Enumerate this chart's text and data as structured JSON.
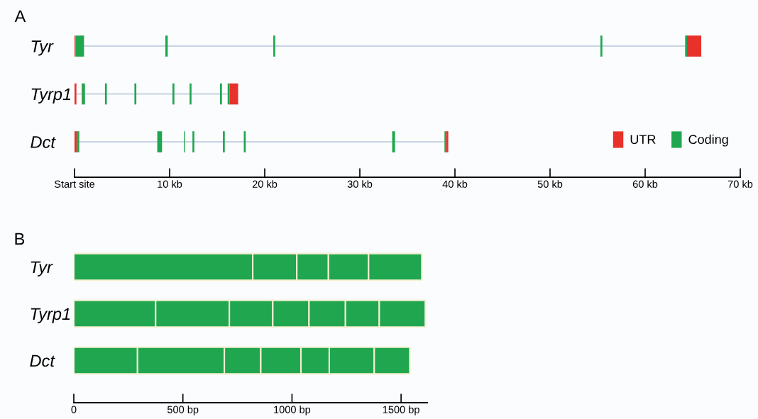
{
  "chart_data": [
    {
      "type": "bar",
      "title": "A",
      "orientation": "horizontal",
      "categories": [
        "Tyr",
        "Tyrp1",
        "Dct"
      ],
      "xlim": [
        0,
        70
      ],
      "xticks": [
        {
          "value": 0,
          "label": "Start site"
        },
        {
          "value": 10,
          "label": "10 kb"
        },
        {
          "value": 20,
          "label": "20 kb"
        },
        {
          "value": 30,
          "label": "30 kb"
        },
        {
          "value": 40,
          "label": "40 kb"
        },
        {
          "value": 50,
          "label": "50 kb"
        },
        {
          "value": 60,
          "label": "60 kb"
        },
        {
          "value": 70,
          "label": "70 kb"
        }
      ],
      "legend": "bottom right",
      "grid": false,
      "series": [
        {
          "color": "#c6d3e3",
          "base": [
            1.0,
            0.2,
            0.5
          ],
          "values": [
            63.2,
            15.9,
            38.4
          ]
        },
        {
          "name": "UTR",
          "color": "#e8312a",
          "base": [
            0,
            0,
            0
          ],
          "values": [
            0.1,
            0.2,
            0.25
          ]
        },
        {
          "color": "#e8312a",
          "base": [
            64.4,
            0.75,
            39.05
          ],
          "values": [
            1.5,
            0.05,
            0.25
          ]
        },
        {
          "color": "#e8312a",
          "base": [
            null,
            16.3,
            null
          ],
          "values": [
            null,
            0.9,
            null
          ]
        },
        {
          "name": "Coding",
          "color": "#1fa64f",
          "base": [
            0.1,
            0.8,
            0.25
          ],
          "values": [
            0.9,
            0.3,
            0.25
          ]
        },
        {
          "color": "#1fa64f",
          "base": [
            9.55,
            3.2,
            8.7
          ],
          "values": [
            0.25,
            0.2,
            0.5
          ]
        },
        {
          "color": "#1fa64f",
          "base": [
            20.9,
            6.3,
            11.5
          ],
          "values": [
            0.2,
            0.2,
            0.1
          ]
        },
        {
          "color": "#1fa64f",
          "base": [
            55.3,
            10.3,
            12.4
          ],
          "values": [
            0.2,
            0.2,
            0.2
          ]
        },
        {
          "color": "#1fa64f",
          "base": [
            64.2,
            12.1,
            15.6
          ],
          "values": [
            0.2,
            0.2,
            0.2
          ]
        },
        {
          "color": "#1fa64f",
          "base": [
            null,
            15.3,
            17.8
          ],
          "values": [
            null,
            0.2,
            0.2
          ]
        },
        {
          "color": "#1fa64f",
          "base": [
            null,
            16.1,
            33.4
          ],
          "values": [
            null,
            0.2,
            0.3
          ]
        },
        {
          "color": "#1fa64f",
          "base": [
            null,
            null,
            38.9
          ],
          "values": [
            null,
            null,
            0.15
          ]
        }
      ]
    },
    {
      "type": "bar",
      "title": "B",
      "orientation": "horizontal",
      "stacked": true,
      "categories": [
        "Tyr",
        "Tyrp1",
        "Dct"
      ],
      "xlim": [
        0,
        1620
      ],
      "xticks": [
        0,
        {
          "value": 500,
          "label": "500 bp"
        },
        {
          "value": 1000,
          "label": "1000 bp"
        },
        {
          "value": 1500,
          "label": "1500 bp"
        }
      ],
      "grid": false,
      "series": [
        {
          "color": "#1fa64f",
          "values": [
            820,
            375,
            292
          ]
        },
        {
          "color": "#1fa64f",
          "values": [
            202,
            338,
            398
          ]
        },
        {
          "color": "#1fa64f",
          "values": [
            145,
            199,
            167
          ]
        },
        {
          "color": "#1fa64f",
          "values": [
            184,
            166,
            184
          ]
        },
        {
          "color": "#1fa64f",
          "values": [
            244,
            167,
            130
          ]
        },
        {
          "color": "#1fa64f",
          "values": [
            null,
            155,
            206
          ]
        },
        {
          "color": "#1fa64f",
          "values": [
            null,
            211,
            163
          ]
        }
      ]
    }
  ]
}
